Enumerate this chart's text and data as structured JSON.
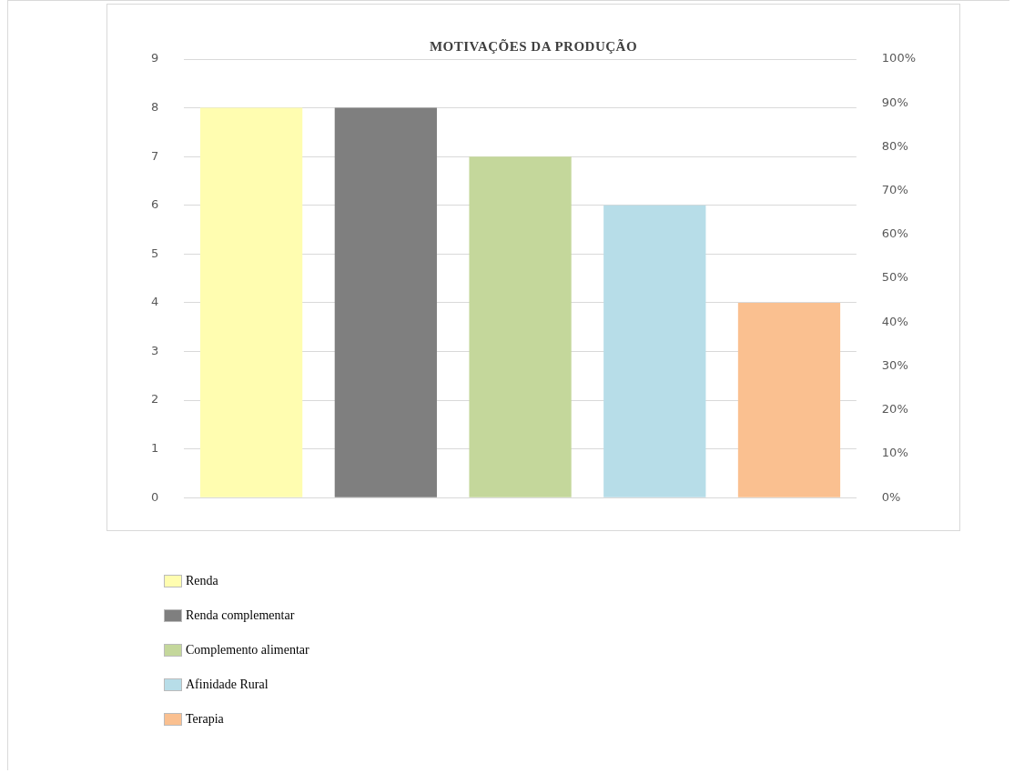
{
  "chart_data": {
    "type": "bar",
    "title": "MOTIVAÇÕES DA PRODUÇÃO",
    "categories": [
      null,
      null,
      null,
      null,
      null
    ],
    "series": [
      {
        "name": "Renda",
        "color": "#fffdb0",
        "values": [
          8,
          null,
          null,
          null,
          null
        ]
      },
      {
        "name": "Renda complementar",
        "color": "#7f7f7f",
        "values": [
          null,
          8,
          null,
          null,
          null
        ]
      },
      {
        "name": "Complemento alimentar",
        "color": "#c4d79b",
        "values": [
          null,
          null,
          7,
          null,
          null
        ]
      },
      {
        "name": "Afinidade Rural",
        "color": "#b7dde8",
        "values": [
          null,
          null,
          null,
          6,
          null
        ]
      },
      {
        "name": "Terapia",
        "color": "#fac090",
        "values": [
          null,
          null,
          null,
          null,
          4
        ]
      }
    ],
    "ylim": [
      0,
      9
    ],
    "yticks": [
      0,
      1,
      2,
      3,
      4,
      5,
      6,
      7,
      8,
      9
    ],
    "y2lim": [
      0,
      100
    ],
    "y2ticks": [
      {
        "value": 0,
        "label": "0%"
      },
      {
        "value": 10,
        "label": "10%"
      },
      {
        "value": 20,
        "label": "20%"
      },
      {
        "value": 30,
        "label": "30%"
      },
      {
        "value": 40,
        "label": "40%"
      },
      {
        "value": 50,
        "label": "50%"
      },
      {
        "value": 60,
        "label": "60%"
      },
      {
        "value": 70,
        "label": "70%"
      },
      {
        "value": 80,
        "label": "80%"
      },
      {
        "value": 90,
        "label": "90%"
      },
      {
        "value": 100,
        "label": "100%"
      }
    ],
    "grid": "y",
    "legend": "bottom"
  }
}
